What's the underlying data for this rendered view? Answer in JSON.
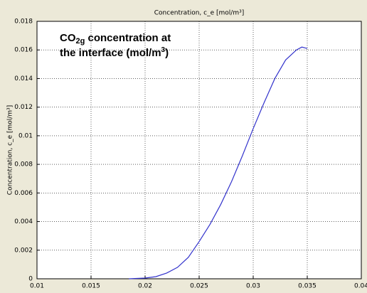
{
  "chart_data": {
    "type": "line",
    "title": "Concentration, c_e [mol/m³]",
    "y_label": "Concentration, c_e [mol/m³]",
    "annotation": {
      "line1": [
        "CO",
        "2g",
        " concentration at"
      ],
      "line2": [
        "the interface (mol/m",
        "3",
        ")"
      ]
    },
    "x": [
      0.0185,
      0.02,
      0.021,
      0.022,
      0.023,
      0.024,
      0.025,
      0.026,
      0.027,
      0.028,
      0.029,
      0.03,
      0.031,
      0.032,
      0.033,
      0.034,
      0.0345,
      0.035
    ],
    "series": [
      {
        "color": "#3333cc",
        "values": [
          0,
          5e-05,
          0.00015,
          0.0004,
          0.0008,
          0.0015,
          0.0026,
          0.0038,
          0.0052,
          0.0068,
          0.0086,
          0.0105,
          0.0123,
          0.014,
          0.0153,
          0.016,
          0.0162,
          0.0161
        ]
      }
    ],
    "xlim": [
      0.01,
      0.04
    ],
    "xticks": [
      0.01,
      0.015,
      0.02,
      0.025,
      0.03,
      0.035,
      0.04
    ],
    "ylim": [
      0,
      0.018
    ],
    "yticks": [
      0,
      0.002,
      0.004,
      0.006,
      0.008,
      0.01,
      0.012,
      0.014,
      0.016,
      0.018
    ],
    "grid": true
  }
}
